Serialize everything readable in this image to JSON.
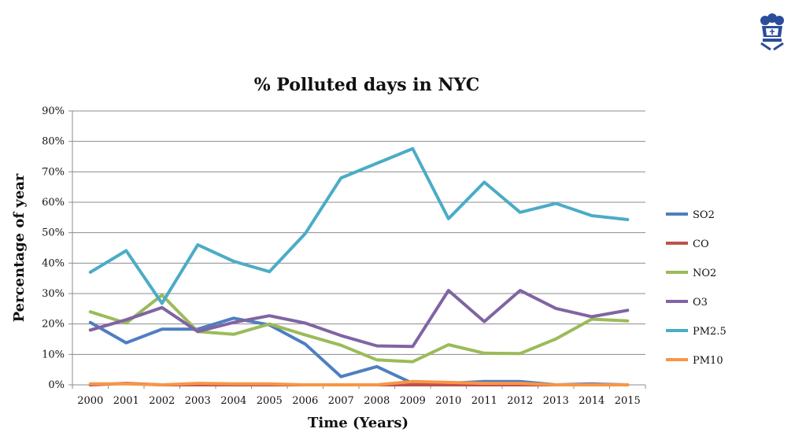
{
  "logo": {
    "icon": "crown-logo-icon",
    "color": "#2b4d9b"
  },
  "chart_data": {
    "type": "line",
    "title": "% Polluted days in NYC",
    "xlabel": "Time (Years)",
    "ylabel": "Percentage of year",
    "ylim": [
      0,
      90
    ],
    "ytick_step": 10,
    "ytick_labels": [
      "0%",
      "10%",
      "20%",
      "30%",
      "40%",
      "50%",
      "60%",
      "70%",
      "80%",
      "90%"
    ],
    "grid": "horizontal",
    "legend_position": "right",
    "x": [
      "2000",
      "2001",
      "2002",
      "2003",
      "2004",
      "2005",
      "2006",
      "2007",
      "2008",
      "2009",
      "2010",
      "2011",
      "2012",
      "2013",
      "2014",
      "2015"
    ],
    "series": [
      {
        "name": "SO2",
        "color": "#4f7ec1",
        "values": [
          20.5,
          13.8,
          18.3,
          18.3,
          21.9,
          19.7,
          13.4,
          2.7,
          6.0,
          0.5,
          0.5,
          1.1,
          1.1,
          0.0,
          0.3,
          0.0
        ]
      },
      {
        "name": "CO",
        "color": "#c0504d",
        "values": [
          0.0,
          0.5,
          0.0,
          0.0,
          0.0,
          0.0,
          0.0,
          0.0,
          0.0,
          0.0,
          0.0,
          0.0,
          0.0,
          0.0,
          0.0,
          0.0
        ]
      },
      {
        "name": "NO2",
        "color": "#9bbb59",
        "values": [
          24.0,
          20.3,
          29.5,
          17.5,
          16.6,
          20.0,
          16.4,
          13.0,
          8.2,
          7.6,
          13.2,
          10.4,
          10.3,
          15.1,
          21.6,
          21.0
        ]
      },
      {
        "name": "O3",
        "color": "#8064a2",
        "values": [
          18.0,
          21.4,
          25.4,
          17.5,
          20.5,
          22.7,
          20.3,
          16.2,
          12.8,
          12.6,
          31.0,
          20.8,
          31.0,
          25.1,
          22.4,
          24.5
        ]
      },
      {
        "name": "PM2.5",
        "color": "#4bacc6",
        "values": [
          37.0,
          44.1,
          26.8,
          46.0,
          40.6,
          37.2,
          49.7,
          68.0,
          72.8,
          77.6,
          54.6,
          66.6,
          56.7,
          59.6,
          55.6,
          54.3
        ]
      },
      {
        "name": "PM10",
        "color": "#f79646",
        "values": [
          0.3,
          0.3,
          0.0,
          0.5,
          0.3,
          0.3,
          0.0,
          0.0,
          0.0,
          1.1,
          0.8,
          0.5,
          0.5,
          0.0,
          0.0,
          0.0
        ]
      }
    ]
  }
}
